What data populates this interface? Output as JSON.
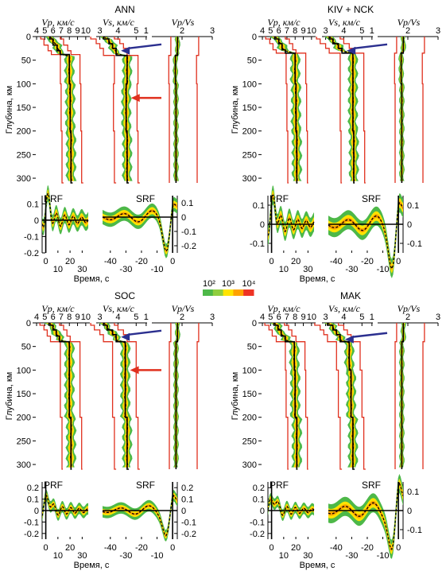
{
  "axis_labels": {
    "vp": "Vp, км/с",
    "vs": "Vs, км/с",
    "vpvs": "Vp/Vs",
    "depth": "Глубина, км",
    "time": "Время, с",
    "prf": "PRF",
    "srf": "SRF"
  },
  "colorbar": {
    "ticks": [
      "10²",
      "10³",
      "10⁴"
    ],
    "colors": [
      "#4db848",
      "#8fce3f",
      "#ffe400",
      "#ffa200",
      "#ee3324"
    ]
  },
  "colors": {
    "frame": "#000000",
    "bounds": "#e0301e",
    "density_outer": "#4db848",
    "density_mid": "#ffe400",
    "density_core": "#ffa200",
    "model_line": "#000000",
    "arrow_blue": "#2b2f8f",
    "arrow_red": "#e0301e"
  },
  "chart_data": [
    {
      "type": "area",
      "station": "ANN",
      "depth_axis": {
        "ticks": [
          0,
          50,
          100,
          150,
          200,
          250,
          300
        ],
        "range": [
          0,
          310
        ]
      },
      "vp_ticks": [
        "4",
        "5",
        "6",
        "7",
        "8",
        "9",
        "10"
      ],
      "vs_ticks": [
        "3",
        "4",
        "5",
        "1"
      ],
      "vpvs_ticks": [
        "2",
        "3"
      ],
      "vp_profile": {
        "depth": [
          0,
          5,
          18,
          30,
          38,
          100,
          200,
          310
        ],
        "value": [
          5.6,
          6.0,
          6.5,
          6.9,
          8.0,
          8.1,
          8.2,
          8.4
        ]
      },
      "vs_profile": {
        "depth": [
          0,
          5,
          15,
          25,
          40,
          100,
          200,
          310
        ],
        "value": [
          3.2,
          3.5,
          3.7,
          3.9,
          4.5,
          4.45,
          4.5,
          4.6
        ]
      },
      "vpvs_profile": {
        "depth": [
          0,
          40,
          100,
          200,
          310
        ],
        "value": [
          1.85,
          1.78,
          1.8,
          1.8,
          1.8
        ]
      },
      "arrows": [
        {
          "panel": "vs",
          "color": "blue",
          "depth": 30
        },
        {
          "panel": "vs",
          "color": "red",
          "depth": 130
        }
      ],
      "prf": {
        "y_ticks": [
          "0.1",
          "0",
          "-0.1",
          "-0.2"
        ],
        "x_ticks": [
          "0",
          "10",
          "20",
          "30"
        ],
        "ylim": [
          -0.2,
          0.15
        ],
        "xlim": [
          -3,
          35
        ]
      },
      "srf": {
        "y_ticks": [
          "0.1",
          "0",
          "-0.1",
          "-0.2"
        ],
        "x_ticks": [
          "-40",
          "-30",
          "-20",
          "-10",
          "0"
        ],
        "ylim": [
          -0.25,
          0.15
        ],
        "xlim": [
          -45,
          3
        ]
      }
    },
    {
      "type": "area",
      "station": "KIV + NCK",
      "depth_axis": {
        "ticks": [
          0,
          50,
          100,
          150,
          200,
          250,
          300
        ],
        "range": [
          0,
          310
        ]
      },
      "vp_ticks": [
        "4",
        "5",
        "6",
        "7",
        "8",
        "9",
        "10"
      ],
      "vs_ticks": [
        "3",
        "4",
        "5",
        "1"
      ],
      "vpvs_ticks": [
        "2",
        "3"
      ],
      "vp_profile": {
        "depth": [
          0,
          5,
          15,
          28,
          35,
          100,
          200,
          310
        ],
        "value": [
          5.5,
          6.0,
          6.4,
          6.8,
          8.0,
          8.1,
          8.2,
          8.3
        ]
      },
      "vs_profile": {
        "depth": [
          0,
          5,
          15,
          25,
          35,
          100,
          200,
          310
        ],
        "value": [
          3.2,
          3.4,
          3.7,
          3.9,
          4.5,
          4.5,
          4.55,
          4.6
        ]
      },
      "vpvs_profile": {
        "depth": [
          0,
          35,
          100,
          200,
          310
        ],
        "value": [
          1.85,
          1.78,
          1.8,
          1.8,
          1.8
        ]
      },
      "arrows": [
        {
          "panel": "vs",
          "color": "blue",
          "depth": 30
        }
      ],
      "prf": {
        "y_ticks": [
          "0.1",
          "0",
          "-0.1"
        ],
        "x_ticks": [
          "0",
          "10",
          "20",
          "30"
        ],
        "ylim": [
          -0.15,
          0.15
        ],
        "xlim": [
          -3,
          35
        ]
      },
      "srf": {
        "y_ticks": [
          "0.1",
          "0",
          "-0.1"
        ],
        "x_ticks": [
          "-40",
          "-30",
          "-20",
          "-10",
          "0"
        ],
        "ylim": [
          -0.15,
          0.15
        ],
        "xlim": [
          -45,
          3
        ]
      }
    },
    {
      "type": "area",
      "station": "SOC",
      "depth_axis": {
        "ticks": [
          0,
          50,
          100,
          150,
          200,
          250,
          300
        ],
        "range": [
          0,
          310
        ]
      },
      "vp_ticks": [
        "4",
        "5",
        "6",
        "7",
        "8",
        "9",
        "10"
      ],
      "vs_ticks": [
        "3",
        "4",
        "5",
        "1"
      ],
      "vpvs_ticks": [
        "2",
        "3"
      ],
      "vp_profile": {
        "depth": [
          0,
          5,
          15,
          28,
          40,
          100,
          200,
          310
        ],
        "value": [
          5.5,
          6.0,
          6.4,
          6.8,
          8.0,
          8.0,
          8.2,
          8.3
        ]
      },
      "vs_profile": {
        "depth": [
          0,
          5,
          15,
          25,
          40,
          100,
          200,
          310
        ],
        "value": [
          3.2,
          3.4,
          3.7,
          3.9,
          4.4,
          4.4,
          4.5,
          4.6
        ]
      },
      "vpvs_profile": {
        "depth": [
          0,
          40,
          100,
          200,
          310
        ],
        "value": [
          1.85,
          1.8,
          1.8,
          1.8,
          1.8
        ]
      },
      "arrows": [
        {
          "panel": "vs",
          "color": "blue",
          "depth": 30
        },
        {
          "panel": "vs",
          "color": "red",
          "depth": 100
        }
      ],
      "prf": {
        "y_ticks": [
          "0.2",
          "0.1",
          "0",
          "-0.1",
          "-0.2"
        ],
        "x_ticks": [
          "0",
          "10",
          "20",
          "30"
        ],
        "ylim": [
          -0.25,
          0.25
        ],
        "xlim": [
          -3,
          35
        ]
      },
      "srf": {
        "y_ticks": [
          "0.2",
          "0.1",
          "0",
          "-0.1",
          "-0.2"
        ],
        "x_ticks": [
          "-40",
          "-30",
          "-20",
          "-10",
          "0"
        ],
        "ylim": [
          -0.25,
          0.25
        ],
        "xlim": [
          -45,
          3
        ]
      }
    },
    {
      "type": "area",
      "station": "MAK",
      "depth_axis": {
        "ticks": [
          0,
          50,
          100,
          150,
          200,
          250,
          300
        ],
        "range": [
          0,
          310
        ]
      },
      "vp_ticks": [
        "4",
        "5",
        "6",
        "7",
        "8",
        "9",
        "10"
      ],
      "vs_ticks": [
        "3",
        "4",
        "5",
        "1"
      ],
      "vpvs_ticks": [
        "2",
        "3"
      ],
      "vp_profile": {
        "depth": [
          0,
          5,
          15,
          28,
          40,
          100,
          200,
          310
        ],
        "value": [
          5.4,
          5.9,
          6.3,
          6.8,
          7.9,
          8.0,
          8.2,
          8.3
        ]
      },
      "vs_profile": {
        "depth": [
          0,
          5,
          15,
          25,
          40,
          100,
          200,
          310
        ],
        "value": [
          3.1,
          3.4,
          3.6,
          3.8,
          4.3,
          4.4,
          4.5,
          4.6
        ]
      },
      "vpvs_profile": {
        "depth": [
          0,
          40,
          100,
          200,
          310
        ],
        "value": [
          1.85,
          1.8,
          1.8,
          1.8,
          1.8
        ]
      },
      "arrows": [
        {
          "panel": "vs",
          "color": "blue",
          "depth": 35
        }
      ],
      "prf": {
        "y_ticks": [
          "0.2",
          "0.1",
          "0",
          "-0.1",
          "-0.2"
        ],
        "x_ticks": [
          "0",
          "10",
          "20",
          "30"
        ],
        "ylim": [
          -0.25,
          0.25
        ],
        "xlim": [
          -3,
          35
        ]
      },
      "srf": {
        "y_ticks": [
          "0.1",
          "0",
          "-0.1"
        ],
        "x_ticks": [
          "-40",
          "-30",
          "-20",
          "-10",
          "0"
        ],
        "ylim": [
          -0.15,
          0.15
        ],
        "xlim": [
          -45,
          3
        ]
      }
    }
  ]
}
